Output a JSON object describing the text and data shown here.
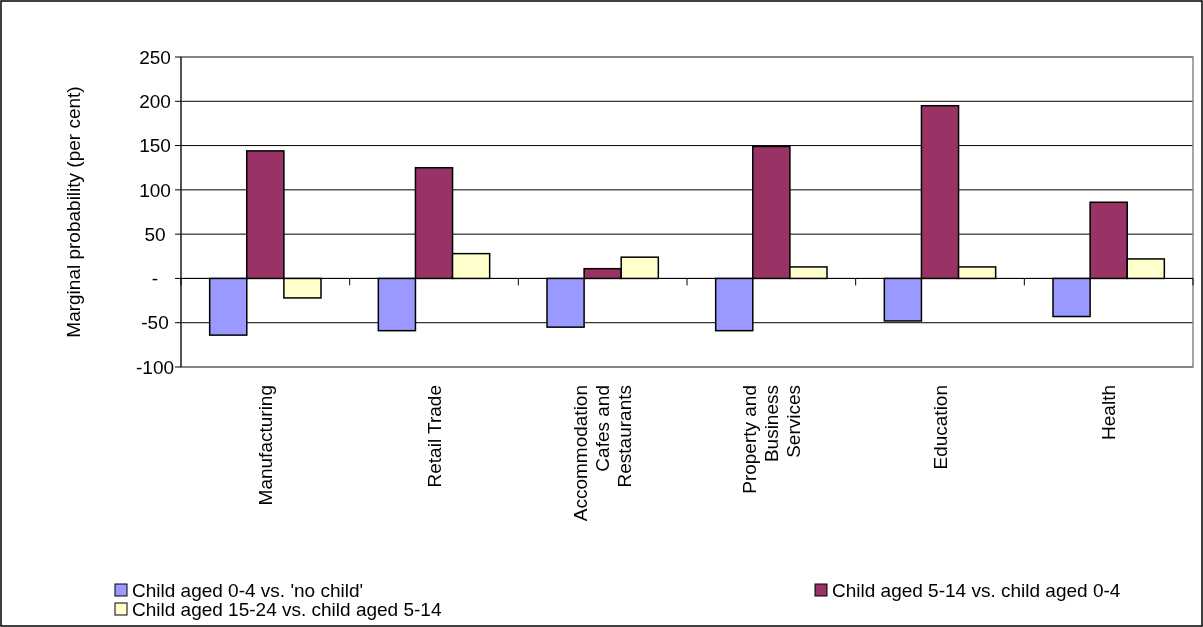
{
  "chart_data": {
    "type": "bar",
    "ylabel": "Marginal probability (per cent)",
    "categories": [
      "Manufacturing",
      "Retail Trade",
      "Accommodation Cafes and Restaurants",
      "Property and Business Services",
      "Education",
      "Health"
    ],
    "series": [
      {
        "name": "Child aged 0-4 vs. 'no child'",
        "color": "#9999ff",
        "values": [
          -64,
          -59,
          -55,
          -59,
          -48,
          -43
        ]
      },
      {
        "name": "Child aged 5-14 vs. child aged 0-4",
        "color": "#993366",
        "values": [
          144,
          125,
          11,
          149,
          195,
          86
        ]
      },
      {
        "name": "Child aged 15-24 vs. child aged 5-14",
        "color": "#ffffcc",
        "values": [
          -22,
          28,
          24,
          13,
          13,
          22
        ]
      }
    ],
    "ylim": [
      -100,
      250
    ],
    "yticks": [
      -100,
      -50,
      {
        "value": 0,
        "label": "-"
      },
      50,
      100,
      150,
      200,
      250
    ],
    "grid": "y",
    "legend": "bottom"
  }
}
